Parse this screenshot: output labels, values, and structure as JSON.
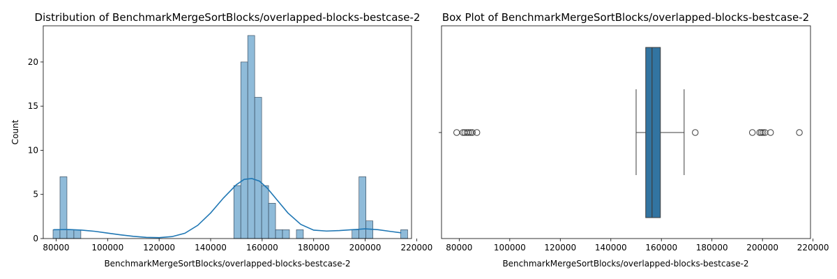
{
  "chart_data": [
    {
      "type": "bar",
      "title": "Distribution of BenchmarkMergeSortBlocks/overlapped-blocks-bestcase-2",
      "xlabel": "BenchmarkMergeSortBlocks/overlapped-blocks-bestcase-2",
      "ylabel": "Count",
      "xlim": [
        75000,
        218000
      ],
      "ylim": [
        0,
        24.1
      ],
      "x_ticks": [
        80000,
        100000,
        120000,
        140000,
        160000,
        180000,
        200000,
        220000
      ],
      "y_ticks": [
        0,
        5,
        10,
        15,
        20
      ],
      "bin_width": 2700,
      "bar_color": "#8fbbd9",
      "line_color": "#1f77b4",
      "bins": [
        {
          "x": 78800,
          "count": 1
        },
        {
          "x": 81500,
          "count": 7
        },
        {
          "x": 84200,
          "count": 1
        },
        {
          "x": 86900,
          "count": 1
        },
        {
          "x": 149000,
          "count": 6
        },
        {
          "x": 151700,
          "count": 20
        },
        {
          "x": 154400,
          "count": 23
        },
        {
          "x": 157100,
          "count": 16
        },
        {
          "x": 159800,
          "count": 6
        },
        {
          "x": 162500,
          "count": 4
        },
        {
          "x": 165200,
          "count": 1
        },
        {
          "x": 167900,
          "count": 1
        },
        {
          "x": 173300,
          "count": 1
        },
        {
          "x": 194900,
          "count": 1
        },
        {
          "x": 197600,
          "count": 7
        },
        {
          "x": 200300,
          "count": 2
        },
        {
          "x": 213800,
          "count": 1
        }
      ],
      "kde": {
        "name": "KDE",
        "x": [
          79000,
          85000,
          90000,
          95000,
          100000,
          105000,
          110000,
          115000,
          120000,
          125000,
          130000,
          135000,
          140000,
          145000,
          150000,
          153000,
          156000,
          159000,
          162000,
          166000,
          170000,
          175000,
          180000,
          185000,
          190000,
          195000,
          200000,
          205000,
          210000,
          214000
        ],
        "y": [
          1.0,
          1.02,
          0.95,
          0.82,
          0.62,
          0.42,
          0.25,
          0.13,
          0.1,
          0.22,
          0.6,
          1.5,
          2.9,
          4.6,
          6.1,
          6.7,
          6.8,
          6.5,
          5.7,
          4.3,
          2.9,
          1.6,
          0.95,
          0.85,
          0.9,
          1.0,
          1.1,
          1.0,
          0.8,
          0.65
        ]
      }
    },
    {
      "type": "box",
      "title": "Box Plot of BenchmarkMergeSortBlocks/overlapped-blocks-bestcase-2",
      "xlabel": "BenchmarkMergeSortBlocks/overlapped-blocks-bestcase-2",
      "xlim": [
        73000,
        219000
      ],
      "x_ticks": [
        80000,
        100000,
        120000,
        140000,
        160000,
        180000,
        200000,
        220000
      ],
      "box_color": "#3274a1",
      "whisker_low": 150000,
      "q1": 153800,
      "median": 156300,
      "q3": 159600,
      "whisker_high": 169000,
      "outliers": [
        79000,
        81500,
        82200,
        83100,
        83800,
        84500,
        85200,
        87000,
        173400,
        196000,
        198900,
        199500,
        200200,
        201000,
        203200,
        214600
      ]
    }
  ]
}
